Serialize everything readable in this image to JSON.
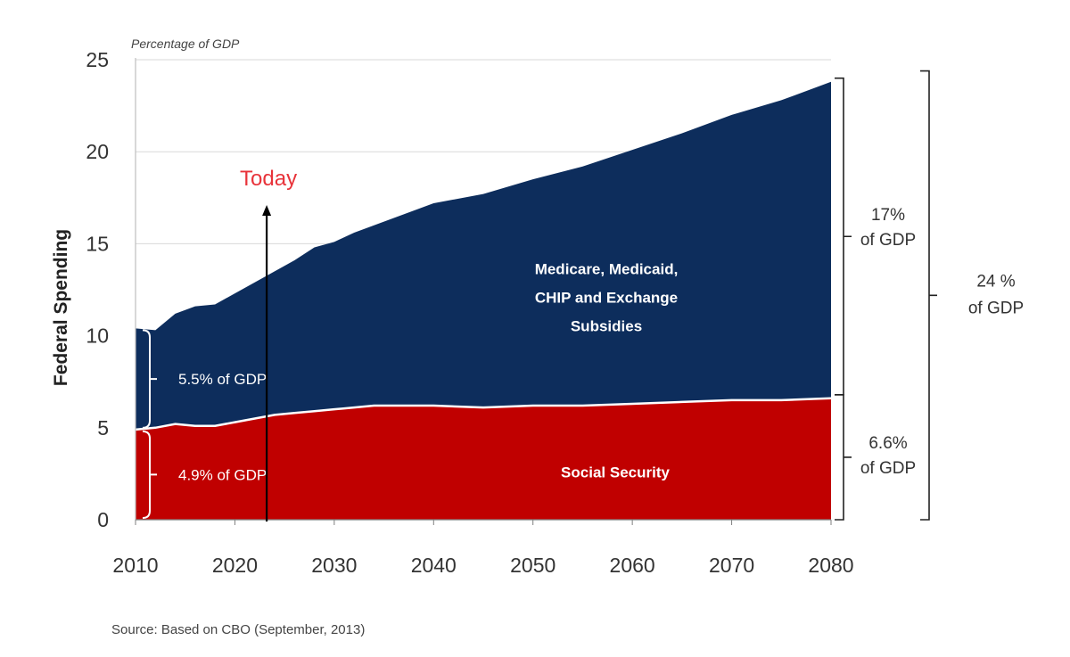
{
  "chart_data": {
    "type": "area",
    "stacked": true,
    "unit_label": "Percentage of GDP",
    "ylabel": "Federal Spending",
    "xlabel": "",
    "xlim": [
      2010,
      2080
    ],
    "ylim": [
      0,
      25
    ],
    "x_ticks": [
      "2010",
      "2020",
      "2030",
      "2040",
      "2050",
      "2060",
      "2070",
      "2080"
    ],
    "y_ticks": [
      "0",
      "5",
      "10",
      "15",
      "20",
      "25"
    ],
    "grid": "horizontal",
    "colors": {
      "social_security": "#c00000",
      "health": "#0d2d5c",
      "today": "#e8333a"
    },
    "x": [
      2010,
      2012,
      2014,
      2016,
      2018,
      2020,
      2022,
      2024,
      2026,
      2028,
      2030,
      2032,
      2034,
      2036,
      2038,
      2040,
      2045,
      2050,
      2055,
      2060,
      2065,
      2070,
      2075,
      2080
    ],
    "series": [
      {
        "name": "Social Security",
        "values": [
          4.9,
          5.0,
          5.2,
          5.1,
          5.1,
          5.3,
          5.5,
          5.7,
          5.8,
          5.9,
          6.0,
          6.1,
          6.2,
          6.2,
          6.2,
          6.2,
          6.1,
          6.2,
          6.2,
          6.3,
          6.4,
          6.5,
          6.5,
          6.6
        ]
      },
      {
        "name": "Medicare, Medicaid, CHIP and Exchange Subsidies",
        "values": [
          5.5,
          5.3,
          6.0,
          6.5,
          6.6,
          7.0,
          7.4,
          7.8,
          8.3,
          8.9,
          9.1,
          9.5,
          9.8,
          10.2,
          10.6,
          11.0,
          11.6,
          12.3,
          13.0,
          13.8,
          14.6,
          15.5,
          16.3,
          17.2
        ]
      }
    ],
    "annotations": {
      "today": {
        "label": "Today",
        "year": 2023.2,
        "arrow_to": 17.1
      },
      "inner_brackets": [
        {
          "label": "5.5% of GDP",
          "from": 4.9,
          "to": 10.4
        },
        {
          "label": "4.9% of GDP",
          "from": 0,
          "to": 4.9
        }
      ],
      "right_brackets": [
        {
          "label_lines": [
            "17%",
            "of GDP"
          ],
          "from": 6.6,
          "to": 23.9
        },
        {
          "label_lines": [
            "6.6%",
            "of GDP"
          ],
          "from": 0,
          "to": 6.6
        }
      ],
      "total_bracket": {
        "label_lines": [
          "24 %",
          "of GDP"
        ],
        "from": 0,
        "to": 24.1
      },
      "area_labels": {
        "health": [
          "Medicare, Medicaid,",
          "CHIP and Exchange",
          "Subsidies"
        ],
        "social_security": "Social Security"
      }
    },
    "source": "Source: Based on CBO (September, 2013)"
  }
}
